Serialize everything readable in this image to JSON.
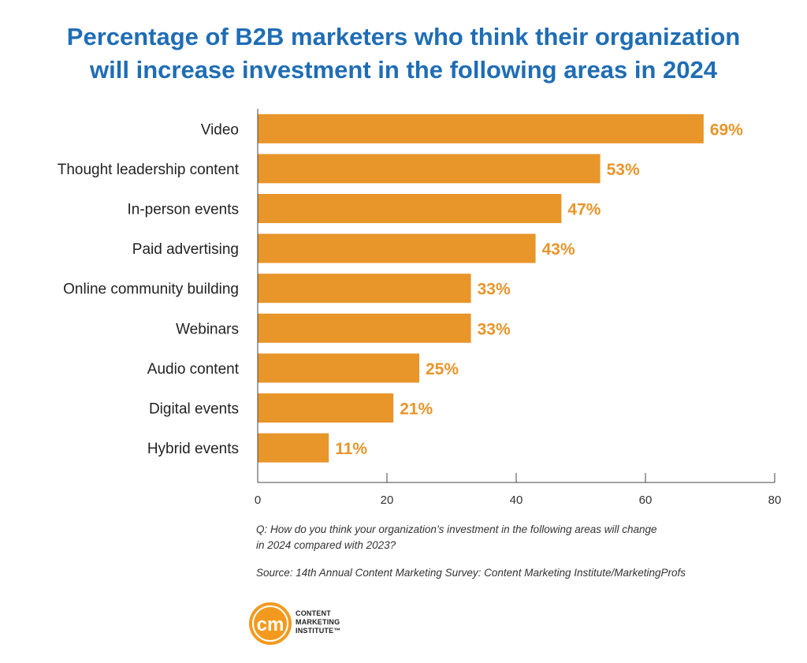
{
  "title": {
    "line1": "Percentage of B2B marketers who think their organization",
    "line2": "will increase investment in the following areas in 2024"
  },
  "chart_data": {
    "type": "bar",
    "orientation": "horizontal",
    "categories": [
      "Video",
      "Thought leadership content",
      "In-person events",
      "Paid advertising",
      "Online community building",
      "Webinars",
      "Audio content",
      "Digital events",
      "Hybrid events"
    ],
    "values": [
      69,
      53,
      47,
      43,
      33,
      33,
      25,
      21,
      11
    ],
    "data_labels": [
      "69%",
      "53%",
      "47%",
      "43%",
      "33%",
      "33%",
      "25%",
      "21%",
      "11%"
    ],
    "xlim": [
      0,
      80
    ],
    "x_ticks": [
      0,
      20,
      40,
      60,
      80
    ],
    "bar_color": "#e8952a",
    "label_color": "#e8952a",
    "grid": false,
    "legend": "none"
  },
  "footnote": {
    "question_line1": "Q: How do you think your organization’s investment in the following areas will change",
    "question_line2": "in 2024 compared with 2023?",
    "source": "Source: 14th Annual Content Marketing Survey: Content Marketing Institute/MarketingProfs"
  },
  "logo": {
    "mark": "cm",
    "line1": "CONTENT",
    "line2": "MARKETING",
    "line3": "INSTITUTE™",
    "color": "#f39a1e"
  }
}
